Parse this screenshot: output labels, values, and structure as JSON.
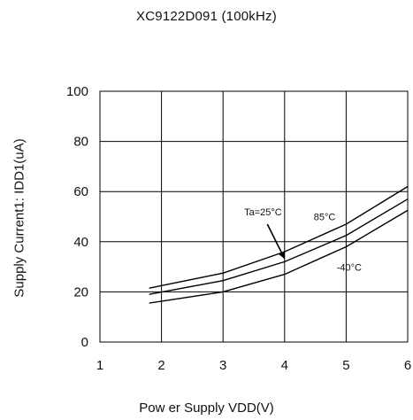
{
  "chart_data": {
    "type": "line",
    "title": "XC9122D091 (100kHz)",
    "xlabel": "Pow er Supply VDD(V)",
    "ylabel": "Supply Current1: IDD1(uA)",
    "xlim": [
      1,
      6
    ],
    "ylim": [
      0,
      100
    ],
    "x_ticks": [
      1,
      2,
      3,
      4,
      5,
      6
    ],
    "y_ticks": [
      0,
      20,
      40,
      60,
      80,
      100
    ],
    "grid": true,
    "series": [
      {
        "name": "85°C",
        "x": [
          1.8,
          3.0,
          4.0,
          5.0,
          6.0
        ],
        "y": [
          21.5,
          27.5,
          36.0,
          47.0,
          62.0
        ]
      },
      {
        "name": "Ta=25°C",
        "x": [
          1.8,
          3.0,
          4.0,
          5.0,
          6.0
        ],
        "y": [
          19.0,
          24.5,
          32.0,
          42.5,
          57.0
        ]
      },
      {
        "name": "-40°C",
        "x": [
          1.8,
          3.0,
          4.0,
          5.0,
          6.0
        ],
        "y": [
          15.5,
          20.0,
          27.0,
          38.0,
          52.5
        ]
      }
    ],
    "annotations": [
      {
        "text": "Ta=25°C",
        "x": 3.65,
        "y": 50.5
      },
      {
        "text": "85°C",
        "x": 4.65,
        "y": 48.5
      },
      {
        "text": "-40°C",
        "x": 5.05,
        "y": 28.5
      }
    ],
    "colors": {
      "line": "#000000",
      "grid": "#000000"
    }
  }
}
